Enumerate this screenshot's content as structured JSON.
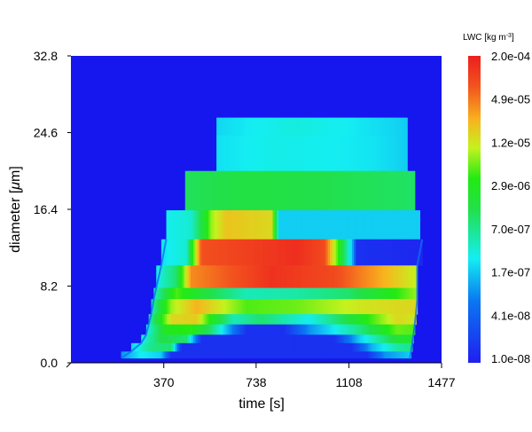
{
  "chart_data": {
    "type": "heatmap",
    "title": "",
    "xlabel": "time [s]",
    "ylabel_parts": {
      "before": "diameter [",
      "mu": "μ",
      "after": "m]"
    },
    "xlim": [
      0,
      1477
    ],
    "ylim": [
      0,
      32.8
    ],
    "x_ticks": [
      "370",
      "738",
      "1108",
      "1477"
    ],
    "x_tick_values": [
      370,
      738,
      1108,
      1477
    ],
    "y_ticks": [
      "0.0",
      "8.2",
      "16.4",
      "24.6",
      "32.8"
    ],
    "y_tick_values": [
      0,
      8.2,
      16.4,
      24.6,
      32.8
    ],
    "colorbar": {
      "title_parts": {
        "main": "LWC [kg m",
        "sup": "-3",
        "end": "]"
      },
      "labels": [
        "2.0e-04",
        "4.9e-05",
        "1.2e-05",
        "2.9e-06",
        "7.0e-07",
        "1.7e-07",
        "4.1e-08",
        "1.0e-08"
      ],
      "scale": "log",
      "range": [
        1e-08,
        0.0002
      ]
    },
    "background_value": 1e-08,
    "bands": [
      {
        "y0": 26.2,
        "y1": 24.3,
        "x_start": 580,
        "x_end": 1340,
        "profile": [
          [
            580,
            2.2e-07
          ],
          [
            700,
            2.8e-07
          ],
          [
            900,
            3.5e-07
          ],
          [
            1120,
            2.8e-07
          ],
          [
            1340,
            2e-07
          ]
        ]
      },
      {
        "y0": 24.3,
        "y1": 20.5,
        "x_start": 580,
        "x_end": 1340,
        "profile": [
          [
            580,
            2.5e-07
          ],
          [
            800,
            3.2e-07
          ],
          [
            1000,
            3e-07
          ],
          [
            1200,
            2.6e-07
          ],
          [
            1340,
            2e-07
          ]
        ]
      },
      {
        "y0": 20.5,
        "y1": 16.3,
        "x_start": 455,
        "x_end": 1370,
        "profile": [
          [
            455,
            1.2e-06
          ],
          [
            700,
            1.6e-06
          ],
          [
            1000,
            1.4e-06
          ],
          [
            1370,
            1.1e-06
          ]
        ]
      },
      {
        "y0": 16.3,
        "y1": 13.2,
        "x_start": 380,
        "x_end": 1390,
        "profile": [
          [
            380,
            3e-07
          ],
          [
            480,
            4e-07
          ],
          [
            540,
            3e-06
          ],
          [
            560,
            8e-06
          ],
          [
            620,
            2e-05
          ],
          [
            800,
            1.5e-05
          ],
          [
            830,
            2e-07
          ],
          [
            1390,
            2e-07
          ]
        ]
      },
      {
        "y0": 13.2,
        "y1": 10.4,
        "x_start": 360,
        "x_end": 1400,
        "profile": [
          [
            360,
            2.5e-07
          ],
          [
            460,
            4e-07
          ],
          [
            520,
            8e-05
          ],
          [
            900,
            0.00015
          ],
          [
            1010,
            9e-05
          ],
          [
            1060,
            6e-06
          ],
          [
            1120,
            2e-07
          ],
          [
            1140,
            1.5e-08
          ],
          [
            1400,
            1.2e-08
          ]
        ]
      },
      {
        "y0": 10.4,
        "y1": 8.0,
        "x_start": 340,
        "x_end": 1380,
        "profile": [
          [
            340,
            3e-07
          ],
          [
            420,
            1e-06
          ],
          [
            480,
            4e-05
          ],
          [
            800,
            0.00014
          ],
          [
            1050,
            9e-05
          ],
          [
            1250,
            2.5e-05
          ],
          [
            1380,
            1e-05
          ]
        ]
      },
      {
        "y0": 8.0,
        "y1": 6.8,
        "x_start": 330,
        "x_end": 1380,
        "profile": [
          [
            330,
            4e-07
          ],
          [
            420,
            5e-06
          ],
          [
            550,
            1.5e-06
          ],
          [
            700,
            5e-07
          ],
          [
            900,
            6e-07
          ],
          [
            1100,
            1e-06
          ],
          [
            1300,
            4e-06
          ],
          [
            1380,
            8e-06
          ]
        ]
      },
      {
        "y0": 6.8,
        "y1": 5.2,
        "x_start": 320,
        "x_end": 1380,
        "profile": [
          [
            320,
            5e-07
          ],
          [
            400,
            8e-06
          ],
          [
            500,
            2.5e-05
          ],
          [
            700,
            5e-06
          ],
          [
            900,
            6e-06
          ],
          [
            1150,
            1.2e-05
          ],
          [
            1300,
            1.5e-05
          ],
          [
            1380,
            1.5e-05
          ]
        ]
      },
      {
        "y0": 5.2,
        "y1": 4.1,
        "x_start": 310,
        "x_end": 1375,
        "profile": [
          [
            310,
            5e-07
          ],
          [
            400,
            1.5e-05
          ],
          [
            500,
            1.8e-05
          ],
          [
            560,
            3e-06
          ],
          [
            650,
            5e-07
          ],
          [
            760,
            1e-06
          ],
          [
            950,
            3e-07
          ],
          [
            1100,
            1.5e-06
          ],
          [
            1300,
            1.5e-05
          ],
          [
            1375,
            1.2e-05
          ]
        ]
      },
      {
        "y0": 4.1,
        "y1": 3.0,
        "x_start": 300,
        "x_end": 1370,
        "profile": [
          [
            300,
            3e-07
          ],
          [
            380,
            3e-06
          ],
          [
            480,
            4e-06
          ],
          [
            560,
            1e-06
          ],
          [
            700,
            1.5e-08
          ],
          [
            850,
            1.5e-08
          ],
          [
            950,
            1e-07
          ],
          [
            1150,
            8e-07
          ],
          [
            1300,
            6e-06
          ],
          [
            1370,
            5e-06
          ]
        ]
      },
      {
        "y0": 3.0,
        "y1": 2.1,
        "x_start": 280,
        "x_end": 1365,
        "profile": [
          [
            280,
            3e-07
          ],
          [
            360,
            1.5e-06
          ],
          [
            460,
            1e-06
          ],
          [
            520,
            1.5e-08
          ],
          [
            1050,
            1.5e-08
          ],
          [
            1150,
            2e-07
          ],
          [
            1300,
            2e-06
          ],
          [
            1365,
            2.5e-06
          ]
        ]
      },
      {
        "y0": 2.1,
        "y1": 1.2,
        "x_start": 240,
        "x_end": 1360,
        "profile": [
          [
            240,
            2e-07
          ],
          [
            320,
            8e-07
          ],
          [
            400,
            1e-06
          ],
          [
            440,
            1.5e-08
          ],
          [
            1120,
            1.5e-08
          ],
          [
            1200,
            1.5e-07
          ],
          [
            1300,
            6e-07
          ],
          [
            1360,
            8e-07
          ]
        ]
      },
      {
        "y0": 1.2,
        "y1": 0.5,
        "x_start": 200,
        "x_end": 1355,
        "profile": [
          [
            200,
            1e-07
          ],
          [
            280,
            3e-07
          ],
          [
            360,
            2e-07
          ],
          [
            400,
            1.5e-08
          ],
          [
            1180,
            1.5e-08
          ],
          [
            1250,
            1e-07
          ],
          [
            1355,
            2e-07
          ]
        ]
      }
    ],
    "left_edge": [
      [
        13.2,
        380
      ],
      [
        10.4,
        360
      ],
      [
        8.0,
        340
      ],
      [
        6.8,
        330
      ],
      [
        5.2,
        320
      ],
      [
        4.1,
        310
      ],
      [
        3.0,
        300
      ],
      [
        2.1,
        280
      ],
      [
        1.2,
        240
      ],
      [
        0.5,
        200
      ]
    ],
    "right_edge": [
      [
        13.2,
        1400
      ],
      [
        10.4,
        1380
      ],
      [
        8.0,
        1380
      ],
      [
        6.8,
        1380
      ],
      [
        5.2,
        1375
      ],
      [
        4.1,
        1370
      ],
      [
        3.0,
        1365
      ],
      [
        2.1,
        1360
      ],
      [
        1.2,
        1355
      ],
      [
        0.5,
        1350
      ]
    ]
  }
}
